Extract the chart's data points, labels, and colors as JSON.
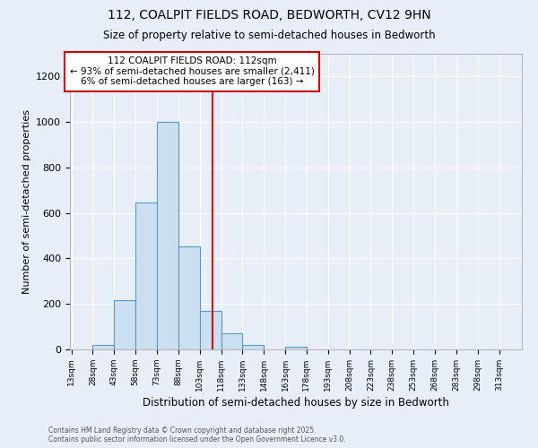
{
  "title_line1": "112, COALPIT FIELDS ROAD, BEDWORTH, CV12 9HN",
  "title_line2": "Size of property relative to semi-detached houses in Bedworth",
  "xlabel": "Distribution of semi-detached houses by size in Bedworth",
  "ylabel": "Number of semi-detached properties",
  "bin_edges": [
    13,
    28,
    43,
    58,
    73,
    88,
    103,
    118,
    133,
    148,
    163,
    178,
    193,
    208,
    223,
    238,
    253,
    268,
    283,
    298,
    313
  ],
  "bar_heights": [
    0,
    20,
    215,
    645,
    1000,
    455,
    170,
    70,
    20,
    0,
    10,
    0,
    0,
    0,
    0,
    0,
    0,
    0,
    0,
    0
  ],
  "bar_color": "#ccdff0",
  "bar_edgecolor": "#5599cc",
  "vline_x": 112,
  "vline_color": "#cc0000",
  "ylim": [
    0,
    1300
  ],
  "yticks": [
    0,
    200,
    400,
    600,
    800,
    1000,
    1200
  ],
  "annotation_title": "112 COALPIT FIELDS ROAD: 112sqm",
  "annotation_line2": "← 93% of semi-detached houses are smaller (2,411)",
  "annotation_line3": "6% of semi-detached houses are larger (163) →",
  "annotation_text_color": "#000000",
  "annotation_box_facecolor": "white",
  "annotation_box_edgecolor": "#cc0000",
  "footnote1": "Contains HM Land Registry data © Crown copyright and database right 2025.",
  "footnote2": "Contains public sector information licensed under the Open Government Licence v3.0.",
  "background_color": "#e8eef8",
  "plot_background_color": "#e8eef8",
  "grid_color": "white",
  "figsize": [
    6.0,
    5.0
  ],
  "dpi": 100
}
